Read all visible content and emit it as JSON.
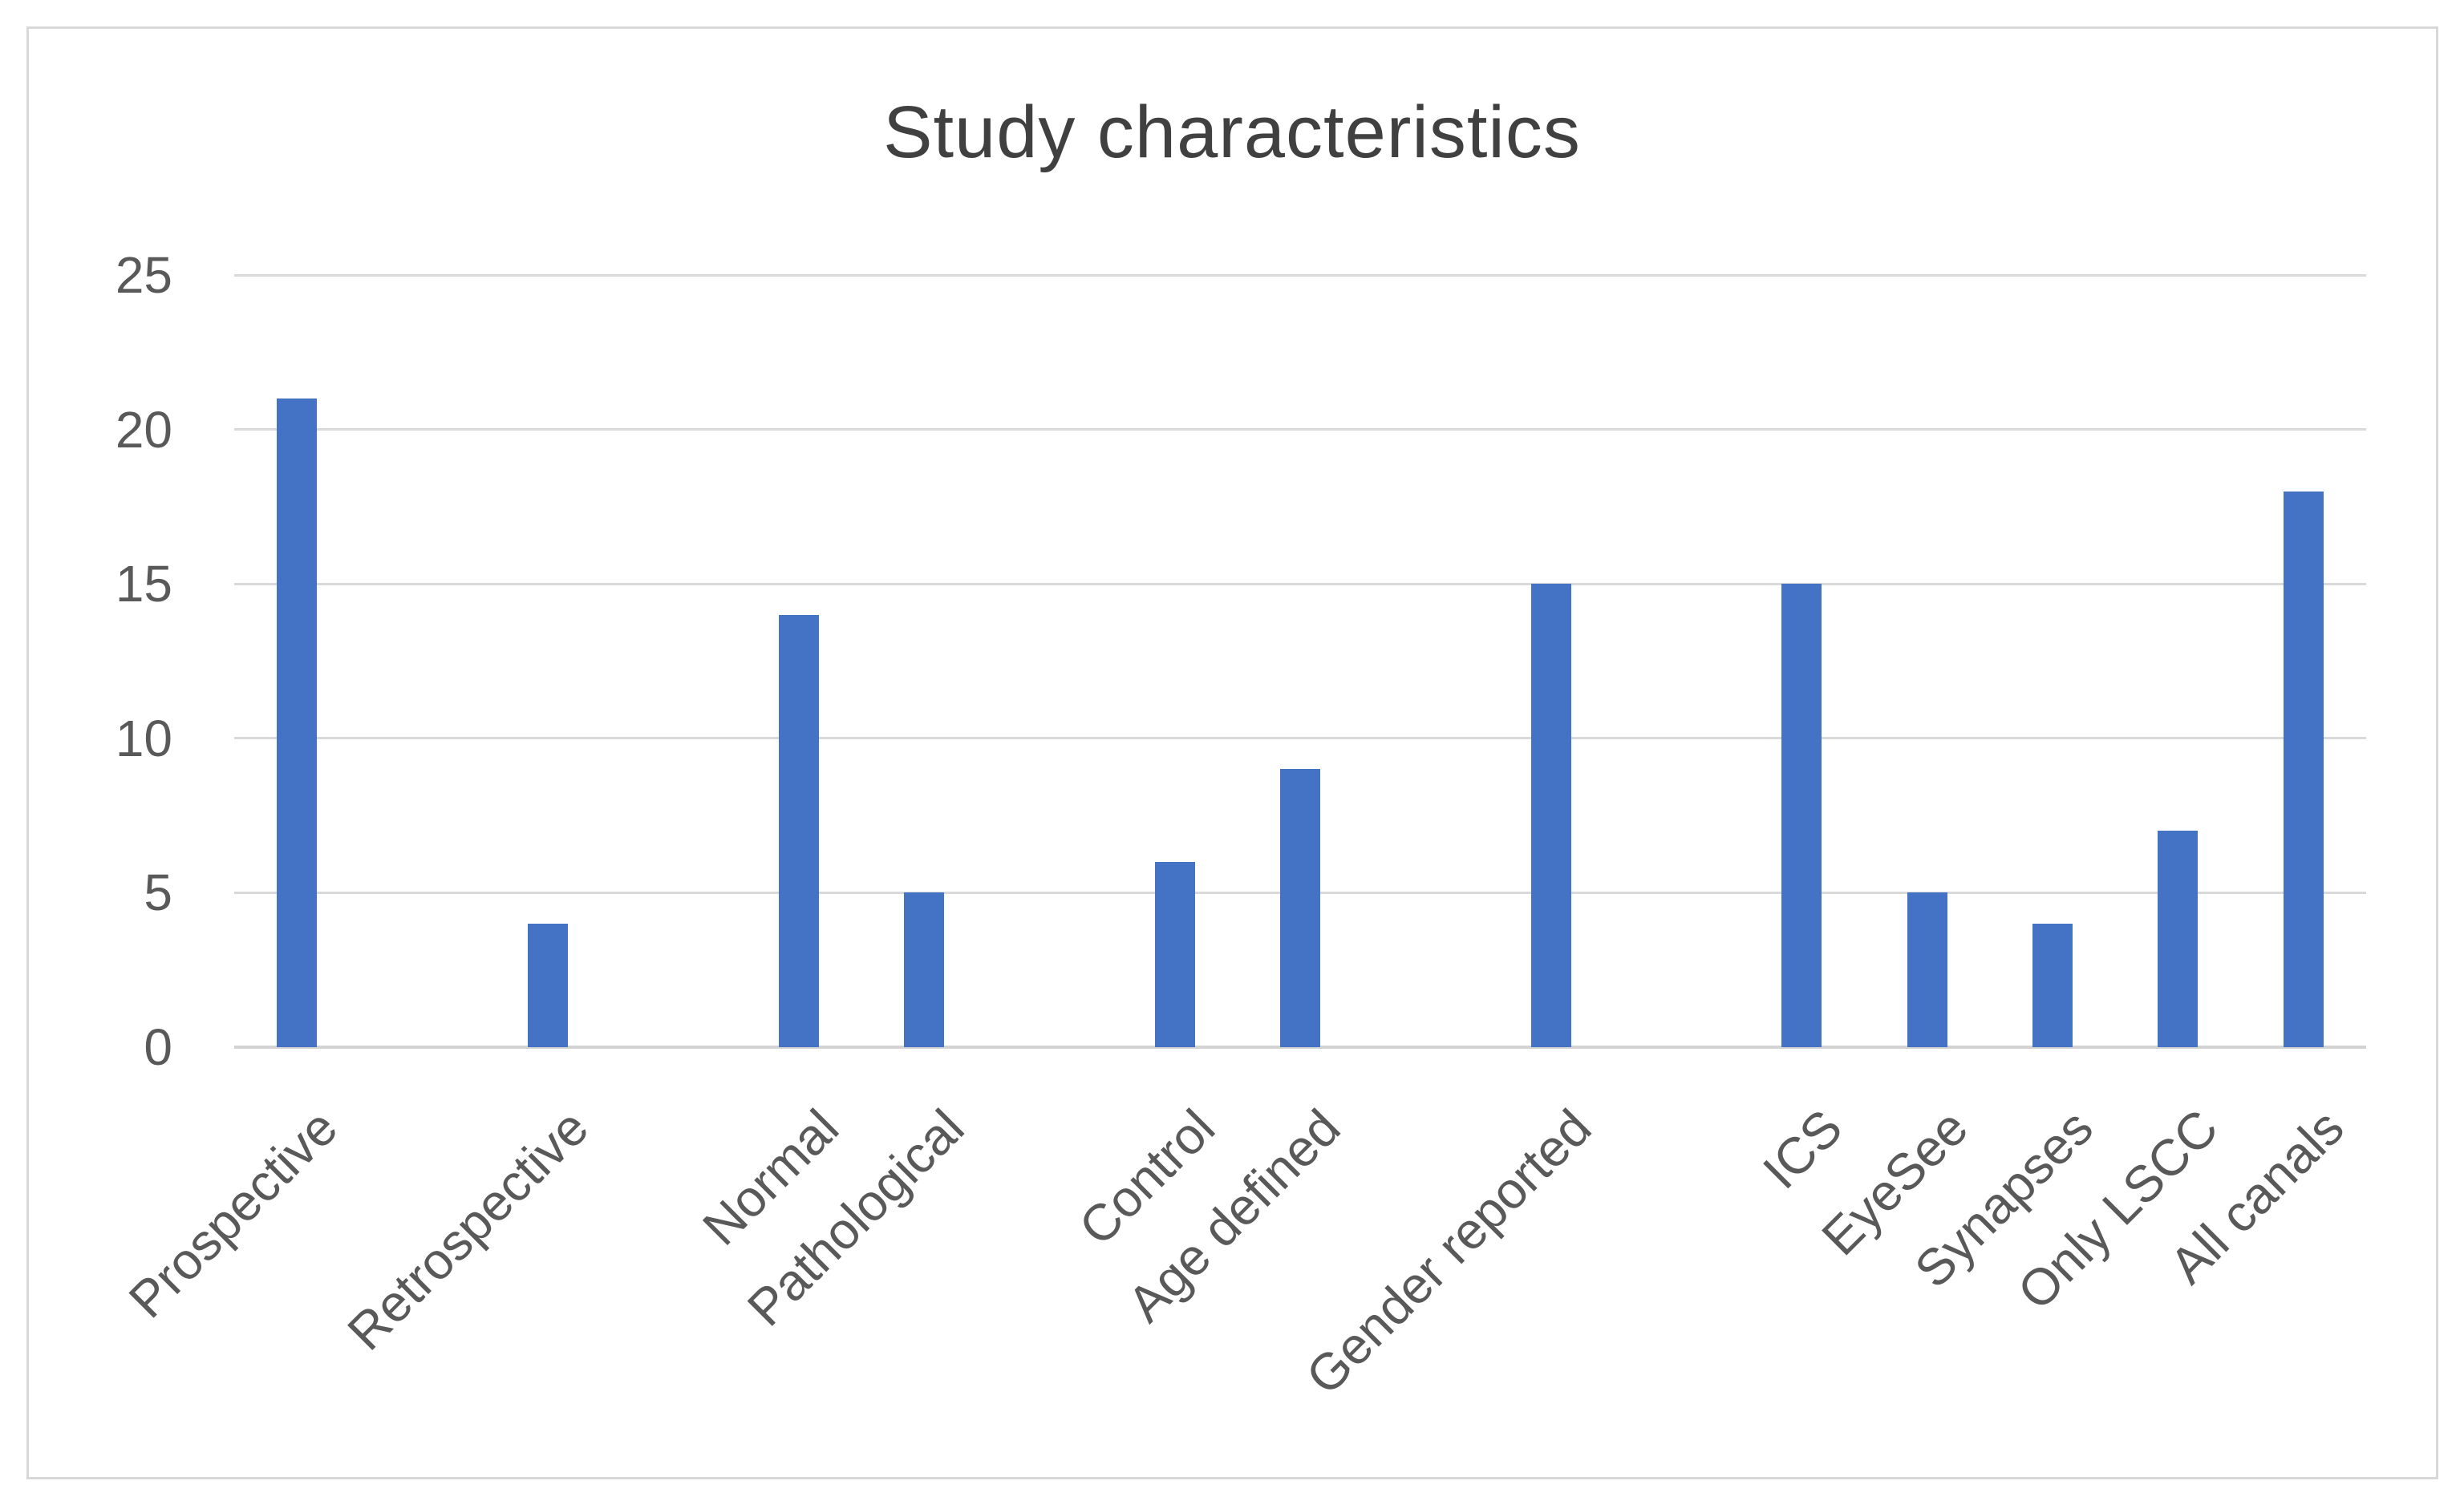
{
  "chart_data": {
    "type": "bar",
    "title": "Study characteristics",
    "categories": [
      "Prospective",
      "Retrospective",
      "Normal",
      "Pathological",
      "Control",
      "Age defined",
      "Gender reported",
      "ICS",
      "EyeSee",
      "Synapses",
      "Only LSCC",
      "All canals"
    ],
    "values": [
      21,
      4,
      14,
      5,
      6,
      9,
      15,
      15,
      5,
      4,
      7,
      18
    ],
    "xlabel": "",
    "ylabel": "",
    "ylim": [
      0,
      25
    ],
    "yticks": [
      0,
      5,
      10,
      15,
      20,
      25
    ],
    "grid": true,
    "legend": false,
    "bar_color": "#4472C4",
    "layout": {
      "total_slots": 17,
      "slots": [
        1,
        3,
        5,
        6,
        8,
        9,
        11,
        13,
        14,
        15,
        16,
        17
      ],
      "x_label_rotation_deg": -45,
      "gridline_color": "#D9D9D9",
      "axis_line_color": "#D3D3D3",
      "title_color": "#404040",
      "tick_label_color": "#595959",
      "border_color": "#D8D8D8",
      "background": "#FFFFFF"
    }
  }
}
